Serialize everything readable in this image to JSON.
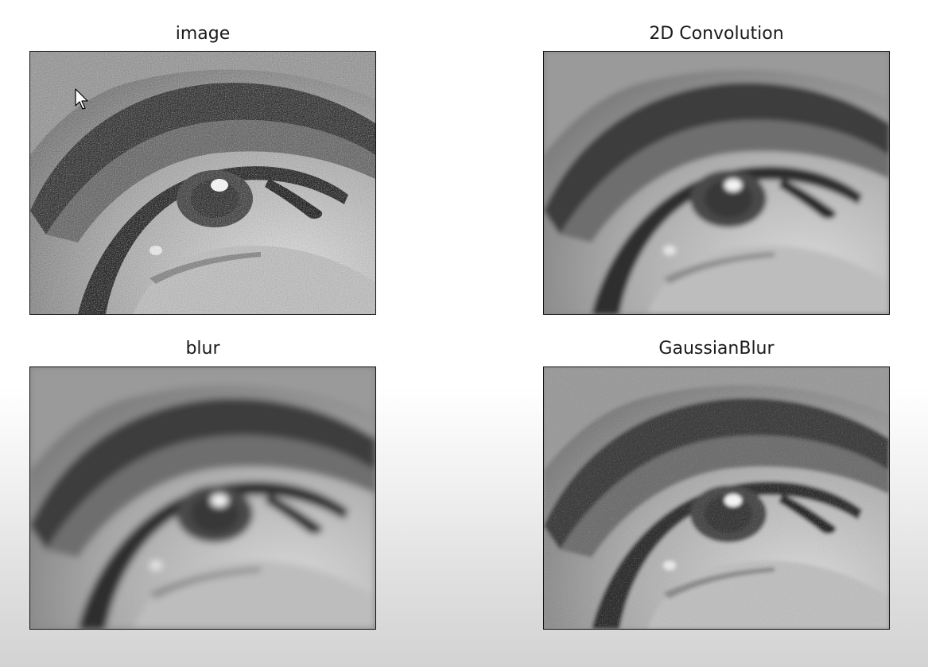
{
  "panels": [
    {
      "title": "image",
      "filter": "noisy"
    },
    {
      "title": "2D Convolution",
      "filter": "conv"
    },
    {
      "title": "blur",
      "filter": "blur"
    },
    {
      "title": "GaussianBlur",
      "filter": "gauss"
    }
  ],
  "icons": {
    "cursor": "mouse-pointer-icon"
  },
  "colors": {
    "frame": "#111111",
    "title": "#1a1a1a"
  }
}
